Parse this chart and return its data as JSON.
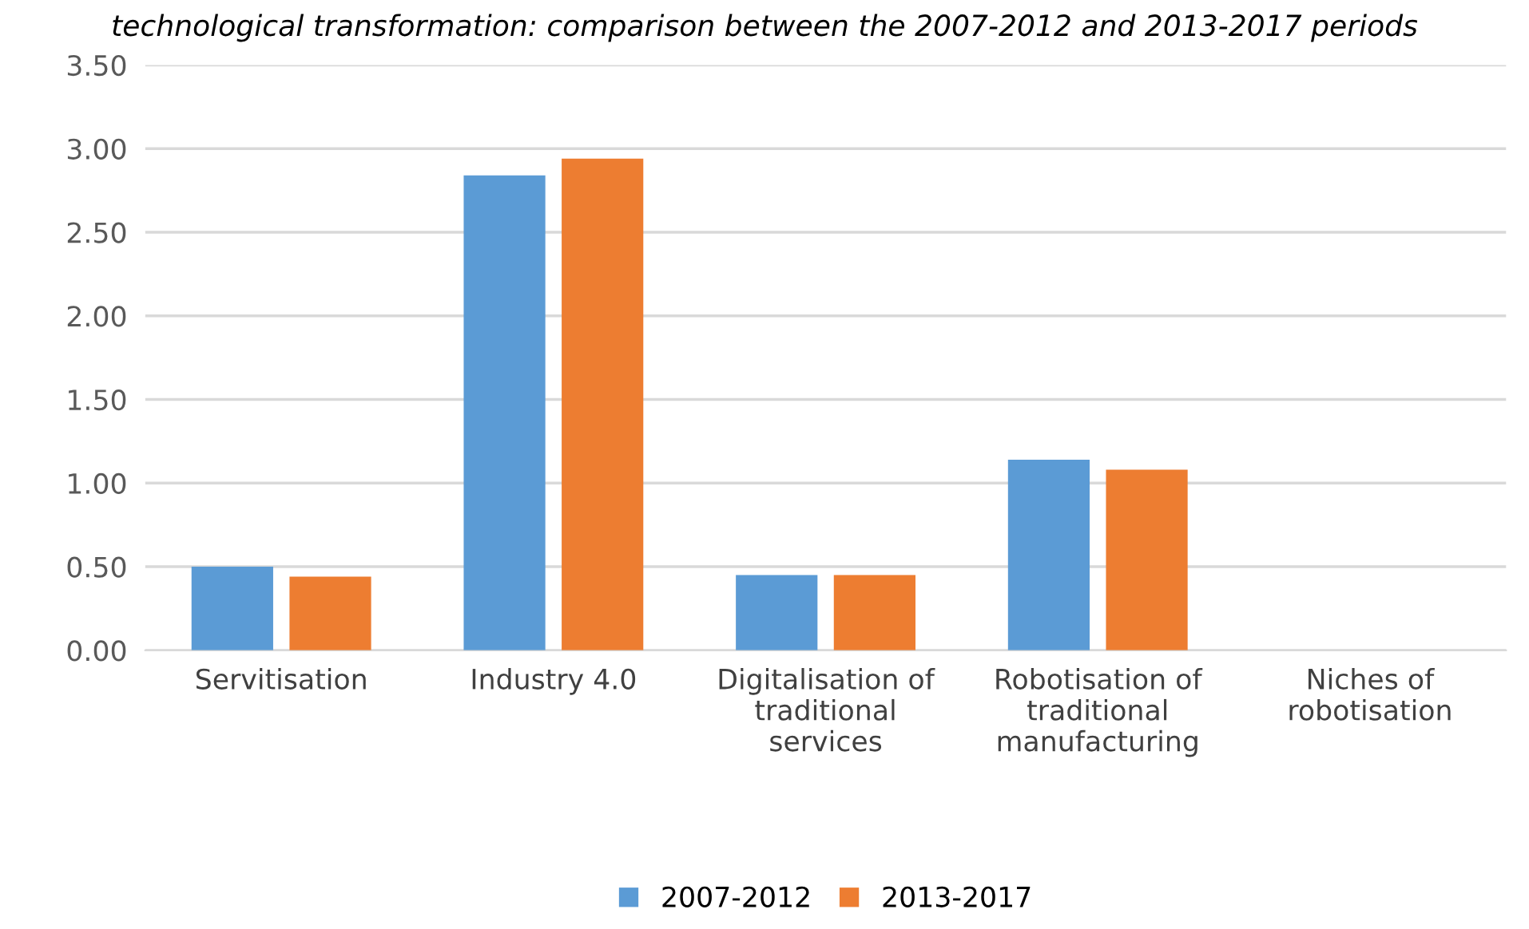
{
  "chart_data": {
    "type": "bar",
    "title": "technological transformation: comparison between the 2007-2012 and 2013-2017 periods",
    "categories": [
      "Servitisation",
      "Industry 4.0",
      "Digitalisation of\ntraditional\nservices",
      "Robotisation of\ntraditional\nmanufacturing",
      "Niches of\nrobotisation"
    ],
    "series": [
      {
        "name": "2007-2012",
        "color": "#5b9bd5",
        "values": [
          0.5,
          2.84,
          0.45,
          1.14,
          0
        ]
      },
      {
        "name": "2013-2017",
        "color": "#ed7d31",
        "values": [
          0.44,
          2.94,
          0.45,
          1.08,
          0
        ]
      }
    ],
    "ylim": [
      0,
      3.5
    ],
    "yticks": [
      {
        "value": 0,
        "label": "0.00"
      },
      {
        "value": 0.5,
        "label": "0.50"
      },
      {
        "value": 1,
        "label": "1.00"
      },
      {
        "value": 1.5,
        "label": "1.50"
      },
      {
        "value": 2,
        "label": "2.00"
      },
      {
        "value": 2.5,
        "label": "2.50"
      },
      {
        "value": 3,
        "label": "3.00"
      },
      {
        "value": 3.5,
        "label": "3.50"
      }
    ],
    "grid": "y",
    "legend": "bottom"
  }
}
